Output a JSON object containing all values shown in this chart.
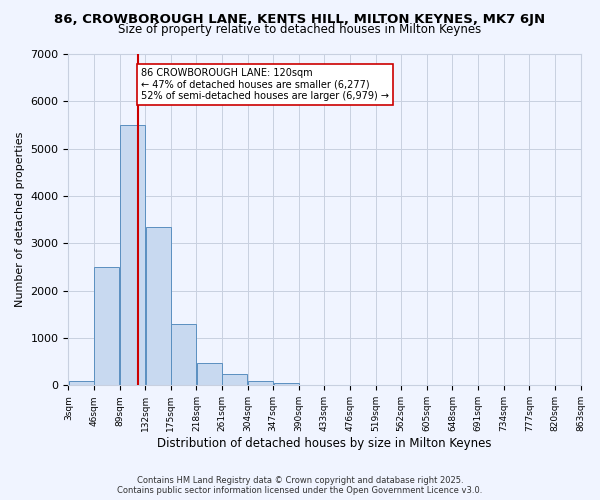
{
  "title": "86, CROWBOROUGH LANE, KENTS HILL, MILTON KEYNES, MK7 6JN",
  "subtitle": "Size of property relative to detached houses in Milton Keynes",
  "xlabel": "Distribution of detached houses by size in Milton Keynes",
  "ylabel": "Number of detached properties",
  "bar_color": "#c8d9f0",
  "bar_edge_color": "#5a8fc0",
  "grid_color": "#c8d0e0",
  "background_color": "#f0f4ff",
  "vline_color": "#cc0000",
  "vline_x": 120,
  "annotation_text": "86 CROWBOROUGH LANE: 120sqm\n← 47% of detached houses are smaller (6,277)\n52% of semi-detached houses are larger (6,979) →",
  "annotation_box_color": "#ffffff",
  "annotation_box_edge": "#cc0000",
  "footer_text": "Contains HM Land Registry data © Crown copyright and database right 2025.\nContains public sector information licensed under the Open Government Licence v3.0.",
  "bin_edges": [
    3,
    46,
    89,
    132,
    175,
    218,
    261,
    304,
    347,
    390,
    433,
    476,
    519,
    562,
    605,
    648,
    691,
    734,
    777,
    820,
    863
  ],
  "bin_labels": [
    "3sqm",
    "46sqm",
    "89sqm",
    "132sqm",
    "175sqm",
    "218sqm",
    "261sqm",
    "304sqm",
    "347sqm",
    "390sqm",
    "433sqm",
    "476sqm",
    "519sqm",
    "562sqm",
    "605sqm",
    "648sqm",
    "691sqm",
    "734sqm",
    "777sqm",
    "820sqm",
    "863sqm"
  ],
  "bar_heights": [
    100,
    2500,
    5500,
    3350,
    1300,
    480,
    230,
    100,
    50,
    0,
    0,
    0,
    0,
    0,
    0,
    0,
    0,
    0,
    0,
    0
  ],
  "ylim": [
    0,
    7000
  ],
  "yticks": [
    0,
    1000,
    2000,
    3000,
    4000,
    5000,
    6000,
    7000
  ]
}
